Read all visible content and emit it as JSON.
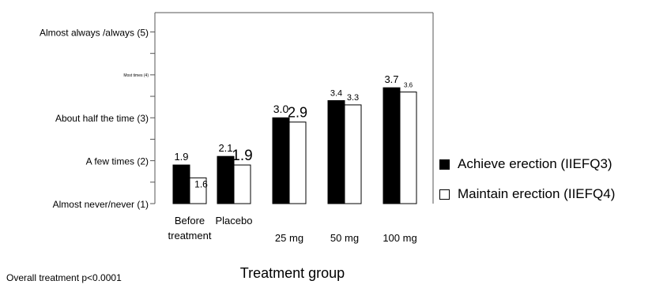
{
  "colors": {
    "achieve": "#000000",
    "maintain": "#ffffff",
    "axis": "#555555"
  },
  "chart_data": {
    "type": "bar",
    "categories": [
      [
        "Before",
        "treatment"
      ],
      [
        "Placebo"
      ],
      [
        "25 mg"
      ],
      [
        "50 mg"
      ],
      [
        "100 mg"
      ]
    ],
    "series": [
      {
        "name": "Achieve erection (IIEFQ3)",
        "values": [
          1.9,
          2.1,
          3.0,
          3.4,
          3.7
        ]
      },
      {
        "name": "Maintain erection (IIEFQ4)",
        "values": [
          1.6,
          1.9,
          2.9,
          3.3,
          3.6
        ]
      }
    ],
    "data_labels": [
      [
        "1.9",
        "1.6"
      ],
      [
        "2.1",
        "1.9"
      ],
      [
        "3.0",
        "2.9"
      ],
      [
        "3.4",
        "3.3"
      ],
      [
        "3.7",
        "3.6"
      ]
    ],
    "y_ticks": [
      {
        "value": 1,
        "label": "Almost never/never (1)"
      },
      {
        "value": 2,
        "label": "A few times     (2)"
      },
      {
        "value": 3,
        "label": "About half the time (3)"
      },
      {
        "value": 4,
        "label": "Most times (4)"
      },
      {
        "value": 5,
        "label": "Almost always /always (5)"
      }
    ],
    "xlabel": "Treatment group",
    "ylim": [
      1,
      5.45
    ],
    "legend_position": "right",
    "footnote": "Overall treatment p<0.0001"
  }
}
